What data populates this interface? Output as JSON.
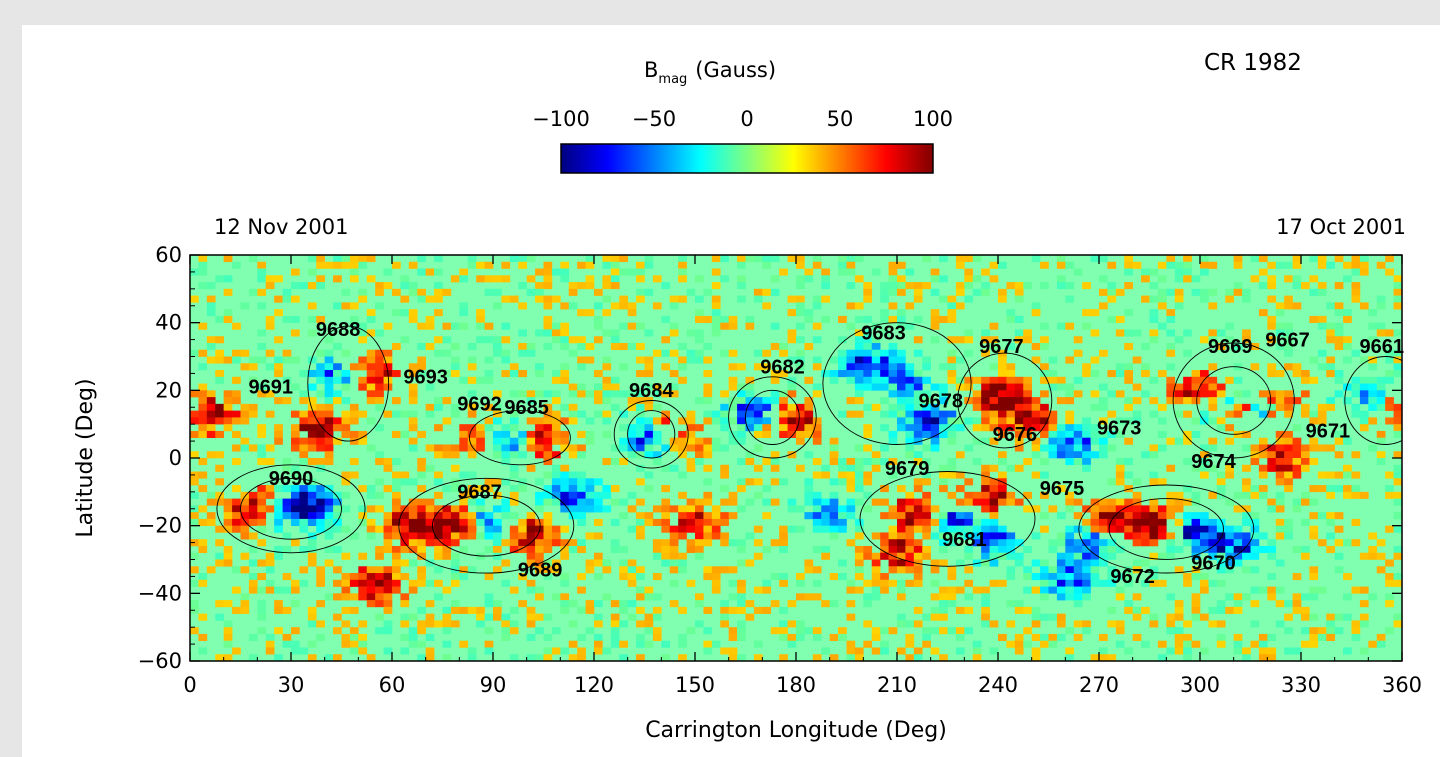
{
  "rotation_label": "CR 1982",
  "date_left": "12 Nov 2001",
  "date_right": "17 Oct 2001",
  "colorbar": {
    "title_main": "B",
    "title_sub": "mag",
    "title_unit": "(Gauss)",
    "ticks": [
      "−100",
      "−50",
      "0",
      "50",
      "100"
    ],
    "tick_values": [
      -100,
      -50,
      0,
      50,
      100
    ],
    "range": [
      -100,
      100
    ],
    "colormap": [
      "#00007f",
      "#0000ff",
      "#007fff",
      "#00ffff",
      "#7fff7f",
      "#ffff00",
      "#ff7f00",
      "#ff0000",
      "#7f0000"
    ]
  },
  "chart_data": {
    "type": "heatmap",
    "title": "",
    "xlabel": "Carrington Longitude (Deg)",
    "ylabel": "Latitude (Deg)",
    "xlim": [
      0,
      360
    ],
    "ylim": [
      -60,
      60
    ],
    "xticks": [
      0,
      30,
      60,
      90,
      120,
      150,
      180,
      210,
      240,
      270,
      300,
      330,
      360
    ],
    "yticks": [
      -60,
      -40,
      -20,
      0,
      20,
      40,
      60
    ],
    "value_label": "Bmag (Gauss)",
    "value_range": [
      -100,
      100
    ],
    "background_value": 15,
    "regions": [
      {
        "label": "9688",
        "x": 44,
        "y": 36
      },
      {
        "label": "9693",
        "x": 70,
        "y": 22
      },
      {
        "label": "9691",
        "x": 24,
        "y": 19
      },
      {
        "label": "9692",
        "x": 86,
        "y": 14
      },
      {
        "label": "9685",
        "x": 100,
        "y": 13
      },
      {
        "label": "9684",
        "x": 137,
        "y": 18
      },
      {
        "label": "9682",
        "x": 176,
        "y": 25
      },
      {
        "label": "9683",
        "x": 206,
        "y": 35
      },
      {
        "label": "9677",
        "x": 241,
        "y": 31
      },
      {
        "label": "9678",
        "x": 223,
        "y": 15
      },
      {
        "label": "9676",
        "x": 245,
        "y": 5
      },
      {
        "label": "9673",
        "x": 276,
        "y": 7
      },
      {
        "label": "9669",
        "x": 309,
        "y": 31
      },
      {
        "label": "9667",
        "x": 326,
        "y": 33
      },
      {
        "label": "9661",
        "x": 354,
        "y": 31
      },
      {
        "label": "9671",
        "x": 338,
        "y": 6
      },
      {
        "label": "9674",
        "x": 304,
        "y": -3
      },
      {
        "label": "9679",
        "x": 213,
        "y": -5
      },
      {
        "label": "9675",
        "x": 259,
        "y": -11
      },
      {
        "label": "9690",
        "x": 30,
        "y": -8
      },
      {
        "label": "9687",
        "x": 86,
        "y": -12
      },
      {
        "label": "9681",
        "x": 230,
        "y": -26
      },
      {
        "label": "9689",
        "x": 104,
        "y": -35
      },
      {
        "label": "9672",
        "x": 280,
        "y": -37
      },
      {
        "label": "9670",
        "x": 304,
        "y": -33
      }
    ],
    "patches": [
      {
        "x": 20,
        "y": -15,
        "v": 90
      },
      {
        "x": 36,
        "y": -14,
        "v": -90
      },
      {
        "x": 28,
        "y": -16,
        "v": -70
      },
      {
        "x": 44,
        "y": 25,
        "v": -85
      },
      {
        "x": 53,
        "y": 25,
        "v": 85
      },
      {
        "x": 38,
        "y": 8,
        "v": 70
      },
      {
        "x": 6,
        "y": 13,
        "v": 70
      },
      {
        "x": 66,
        "y": -20,
        "v": 85
      },
      {
        "x": 80,
        "y": -20,
        "v": 85
      },
      {
        "x": 89,
        "y": -20,
        "v": -90
      },
      {
        "x": 100,
        "y": -23,
        "v": 85
      },
      {
        "x": 95,
        "y": 5,
        "v": -75
      },
      {
        "x": 104,
        "y": 5,
        "v": 75
      },
      {
        "x": 84,
        "y": 6,
        "v": 55
      },
      {
        "x": 114,
        "y": -12,
        "v": -75
      },
      {
        "x": 137,
        "y": 6,
        "v": -90
      },
      {
        "x": 143,
        "y": 7,
        "v": 75
      },
      {
        "x": 168,
        "y": 13,
        "v": -90
      },
      {
        "x": 178,
        "y": 11,
        "v": 90
      },
      {
        "x": 150,
        "y": -19,
        "v": 60
      },
      {
        "x": 200,
        "y": 28,
        "v": -75
      },
      {
        "x": 212,
        "y": 23,
        "v": -70
      },
      {
        "x": 220,
        "y": 10,
        "v": -85
      },
      {
        "x": 240,
        "y": 18,
        "v": 90
      },
      {
        "x": 250,
        "y": 11,
        "v": 75
      },
      {
        "x": 262,
        "y": 4,
        "v": -80
      },
      {
        "x": 216,
        "y": -16,
        "v": 80
      },
      {
        "x": 226,
        "y": -18,
        "v": -75
      },
      {
        "x": 210,
        "y": -28,
        "v": 75
      },
      {
        "x": 237,
        "y": -12,
        "v": 70
      },
      {
        "x": 240,
        "y": -25,
        "v": -70
      },
      {
        "x": 272,
        "y": -19,
        "v": 90
      },
      {
        "x": 268,
        "y": -24,
        "v": -85
      },
      {
        "x": 286,
        "y": -20,
        "v": 85
      },
      {
        "x": 298,
        "y": -22,
        "v": -80
      },
      {
        "x": 310,
        "y": -26,
        "v": -85
      },
      {
        "x": 262,
        "y": -35,
        "v": -75
      },
      {
        "x": 300,
        "y": 20,
        "v": 80
      },
      {
        "x": 310,
        "y": 15,
        "v": 90
      },
      {
        "x": 306,
        "y": 16,
        "v": -90
      },
      {
        "x": 318,
        "y": 16,
        "v": -80
      },
      {
        "x": 322,
        "y": 17,
        "v": 80
      },
      {
        "x": 352,
        "y": 18,
        "v": -90
      },
      {
        "x": 357,
        "y": 16,
        "v": 85
      },
      {
        "x": 55,
        "y": -37,
        "v": 70
      },
      {
        "x": 325,
        "y": 0,
        "v": 60
      },
      {
        "x": 190,
        "y": -16,
        "v": -55
      }
    ]
  }
}
